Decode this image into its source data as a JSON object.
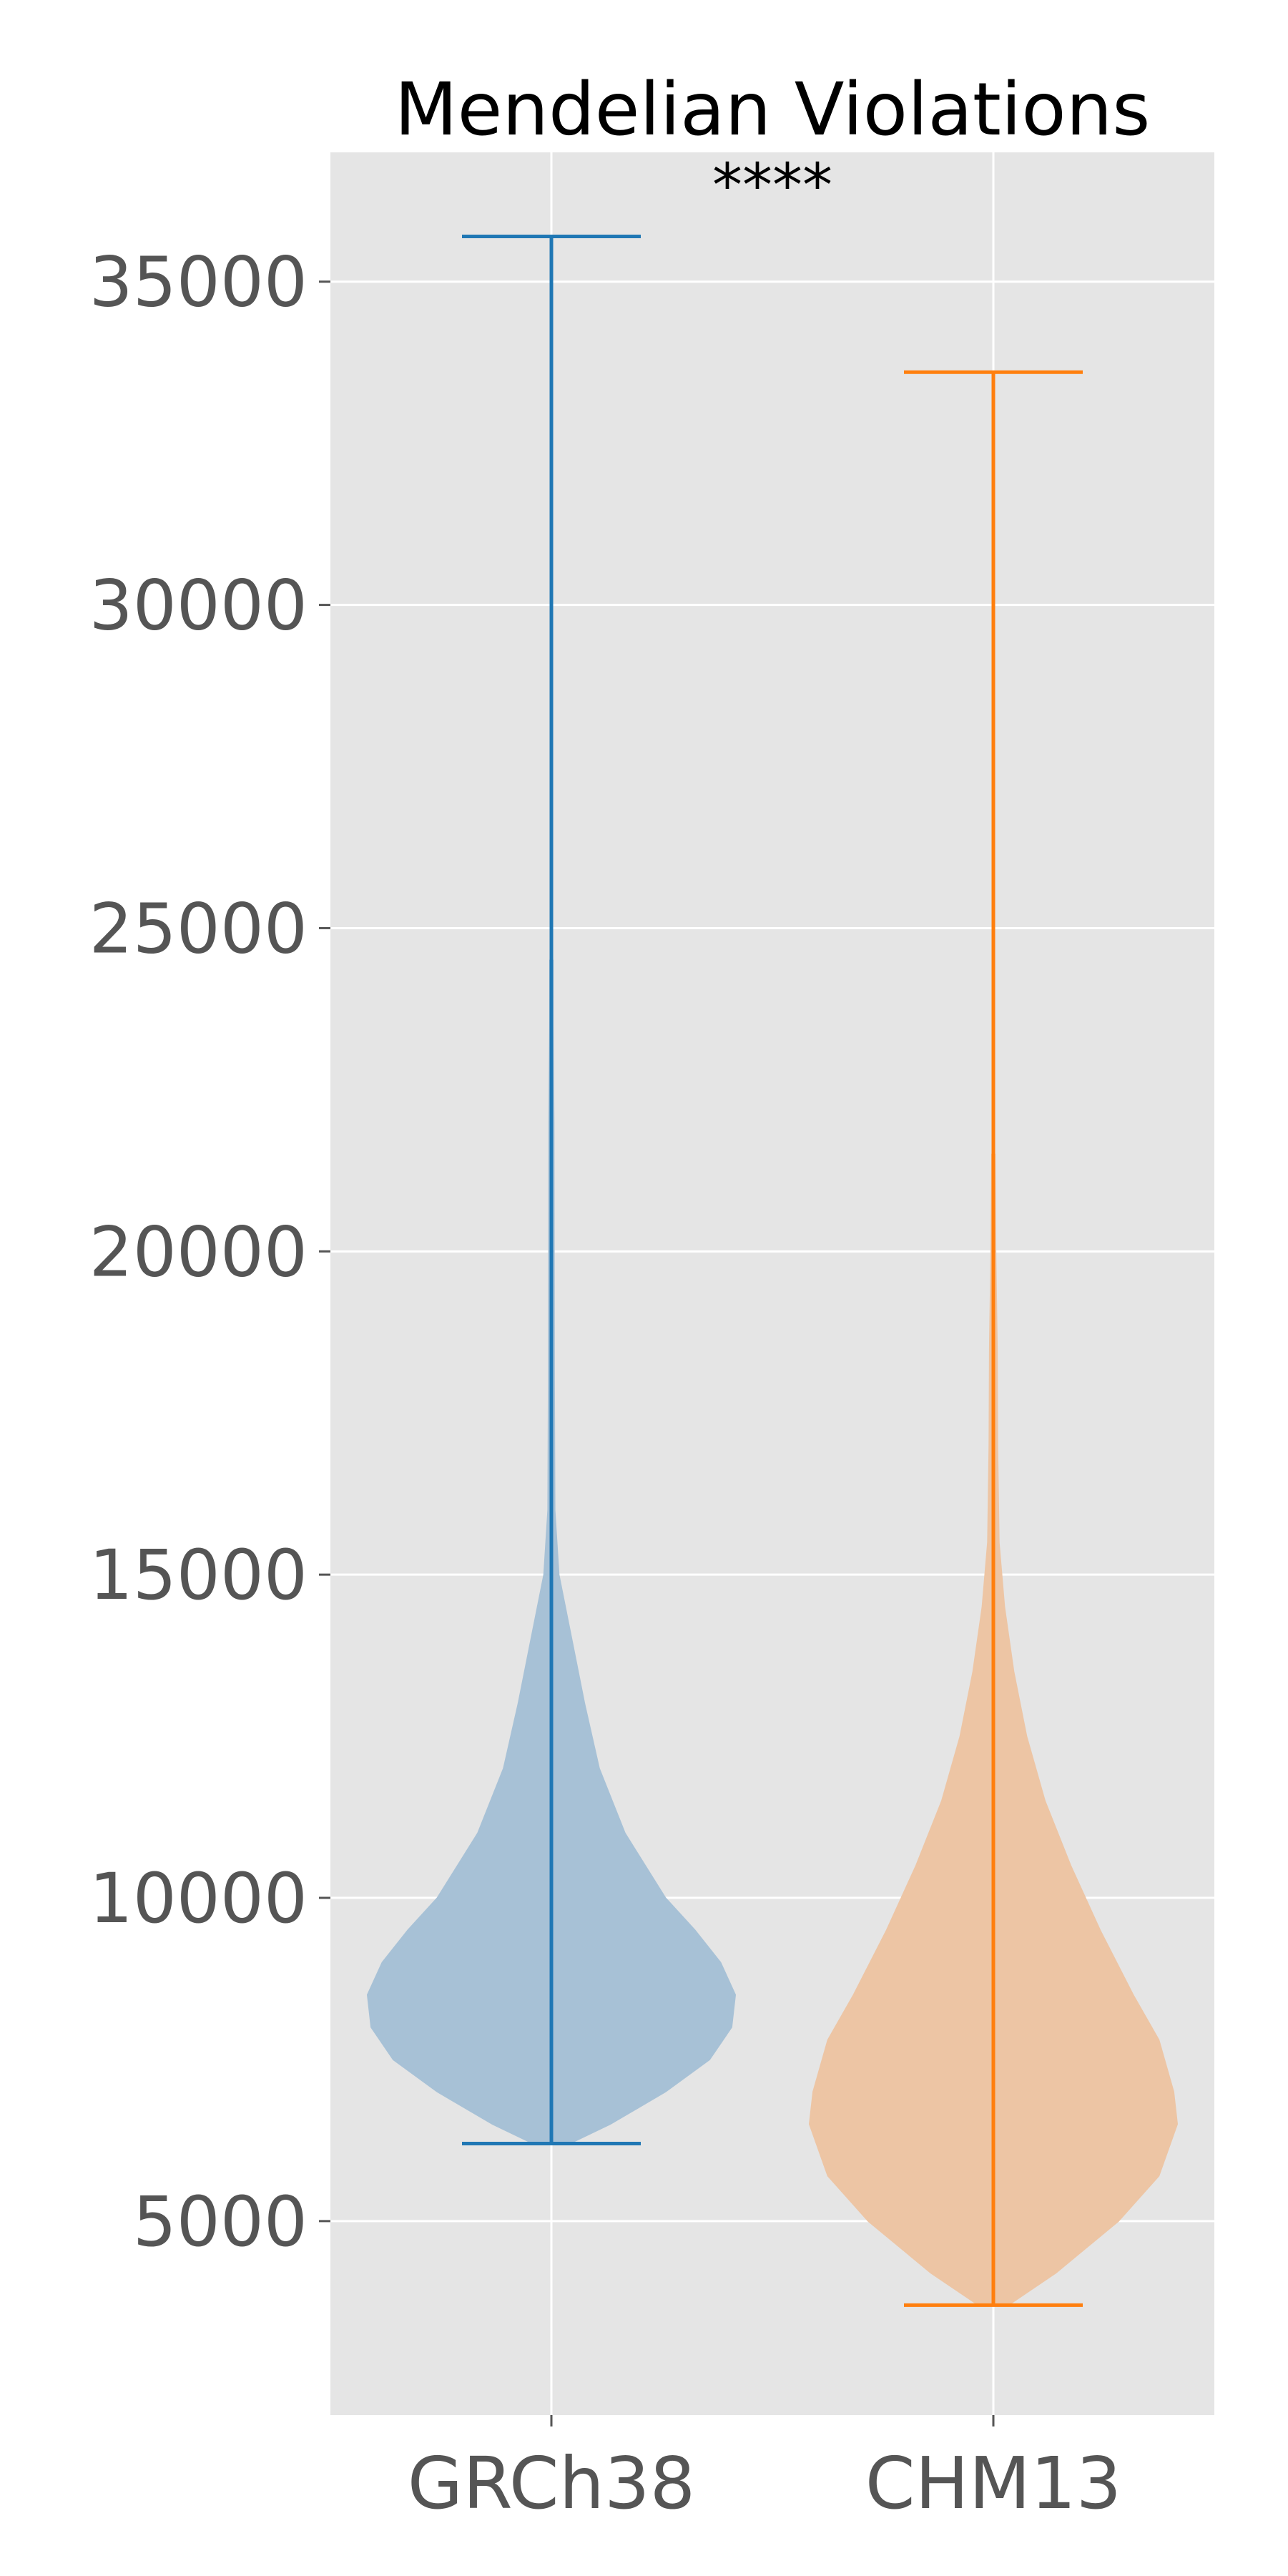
{
  "chart_data": {
    "type": "violin",
    "title": "Mendelian Violations",
    "annotation": "****",
    "xlabel": "",
    "ylabel": "",
    "categories": [
      "GRCh38",
      "CHM13"
    ],
    "ylim": [
      2000,
      37000
    ],
    "yticks": [
      5000,
      10000,
      15000,
      20000,
      25000,
      30000,
      35000
    ],
    "ytick_labels": [
      "5000",
      "10000",
      "15000",
      "20000",
      "25000",
      "30000",
      "35000"
    ],
    "grid": true,
    "legend": "none",
    "series": [
      {
        "category": "GRCh38",
        "color": "#1f77b4",
        "fill_color": "#a7c1d6",
        "min": 6200,
        "max": 35700,
        "density": [
          [
            6200,
            0.1
          ],
          [
            6500,
            0.32
          ],
          [
            7000,
            0.62
          ],
          [
            7500,
            0.86
          ],
          [
            8000,
            0.98
          ],
          [
            8500,
            1.0
          ],
          [
            9000,
            0.92
          ],
          [
            9500,
            0.78
          ],
          [
            10000,
            0.62
          ],
          [
            11000,
            0.4
          ],
          [
            12000,
            0.26
          ],
          [
            13000,
            0.18
          ],
          [
            14000,
            0.11
          ],
          [
            15000,
            0.04
          ],
          [
            16000,
            0.018
          ],
          [
            18000,
            0.015
          ],
          [
            20000,
            0.014
          ],
          [
            22000,
            0.013
          ],
          [
            23500,
            0.008
          ],
          [
            24500,
            0.0
          ]
        ]
      },
      {
        "category": "CHM13",
        "color": "#ff7f0e",
        "fill_color": "#edc5a4",
        "min": 3700,
        "max": 33600,
        "density": [
          [
            3700,
            0.08
          ],
          [
            4200,
            0.34
          ],
          [
            5000,
            0.68
          ],
          [
            5700,
            0.9
          ],
          [
            6500,
            1.0
          ],
          [
            7000,
            0.98
          ],
          [
            7800,
            0.9
          ],
          [
            8500,
            0.76
          ],
          [
            9500,
            0.58
          ],
          [
            10500,
            0.42
          ],
          [
            11500,
            0.28
          ],
          [
            12500,
            0.18
          ],
          [
            13500,
            0.11
          ],
          [
            14500,
            0.06
          ],
          [
            15500,
            0.03
          ],
          [
            17000,
            0.022
          ],
          [
            18500,
            0.02
          ],
          [
            20000,
            0.012
          ],
          [
            21500,
            0.0
          ]
        ]
      }
    ]
  }
}
